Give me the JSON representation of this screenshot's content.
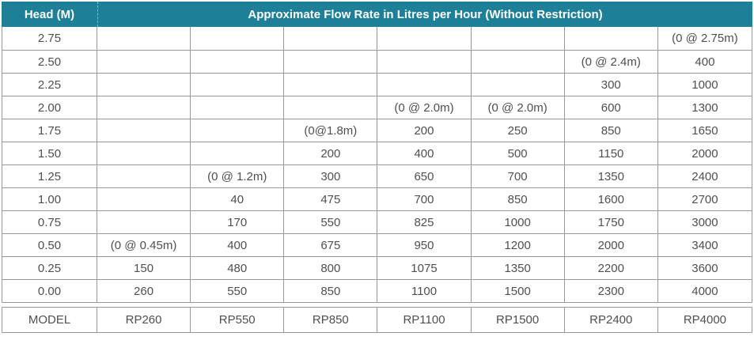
{
  "colors": {
    "header_bg": "#1e7f99",
    "header_text": "#ffffff",
    "body_text": "#4f4f4f",
    "border": "#999999",
    "page_bg": "#ffffff"
  },
  "chart_data": {
    "type": "table",
    "title": "Approximate Flow Rate in Litres per Hour (Without Restriction)",
    "head_column_header": "Head (M)",
    "model_row_label": "MODEL",
    "columns": [
      "RP260",
      "RP550",
      "RP850",
      "RP1100",
      "RP1500",
      "RP2400",
      "RP4000"
    ],
    "rows": [
      {
        "head": "2.75",
        "values": [
          "",
          "",
          "",
          "",
          "",
          "",
          "(0 @ 2.75m)"
        ]
      },
      {
        "head": "2.50",
        "values": [
          "",
          "",
          "",
          "",
          "",
          "(0 @ 2.4m)",
          "400"
        ]
      },
      {
        "head": "2.25",
        "values": [
          "",
          "",
          "",
          "",
          "",
          "300",
          "1000"
        ]
      },
      {
        "head": "2.00",
        "values": [
          "",
          "",
          "",
          "(0 @ 2.0m)",
          "(0 @ 2.0m)",
          "600",
          "1300"
        ]
      },
      {
        "head": "1.75",
        "values": [
          "",
          "",
          "(0@1.8m)",
          "200",
          "250",
          "850",
          "1650"
        ]
      },
      {
        "head": "1.50",
        "values": [
          "",
          "",
          "200",
          "400",
          "500",
          "1150",
          "2000"
        ]
      },
      {
        "head": "1.25",
        "values": [
          "",
          "(0 @ 1.2m)",
          "300",
          "650",
          "700",
          "1350",
          "2400"
        ]
      },
      {
        "head": "1.00",
        "values": [
          "",
          "40",
          "475",
          "700",
          "850",
          "1600",
          "2700"
        ]
      },
      {
        "head": "0.75",
        "values": [
          "",
          "170",
          "550",
          "825",
          "1000",
          "1750",
          "3000"
        ]
      },
      {
        "head": "0.50",
        "values": [
          "(0 @ 0.45m)",
          "400",
          "675",
          "950",
          "1200",
          "2000",
          "3400"
        ]
      },
      {
        "head": "0.25",
        "values": [
          "150",
          "480",
          "800",
          "1075",
          "1350",
          "2200",
          "3600"
        ]
      },
      {
        "head": "0.00",
        "values": [
          "260",
          "550",
          "850",
          "1100",
          "1500",
          "2300",
          "4000"
        ]
      }
    ]
  }
}
